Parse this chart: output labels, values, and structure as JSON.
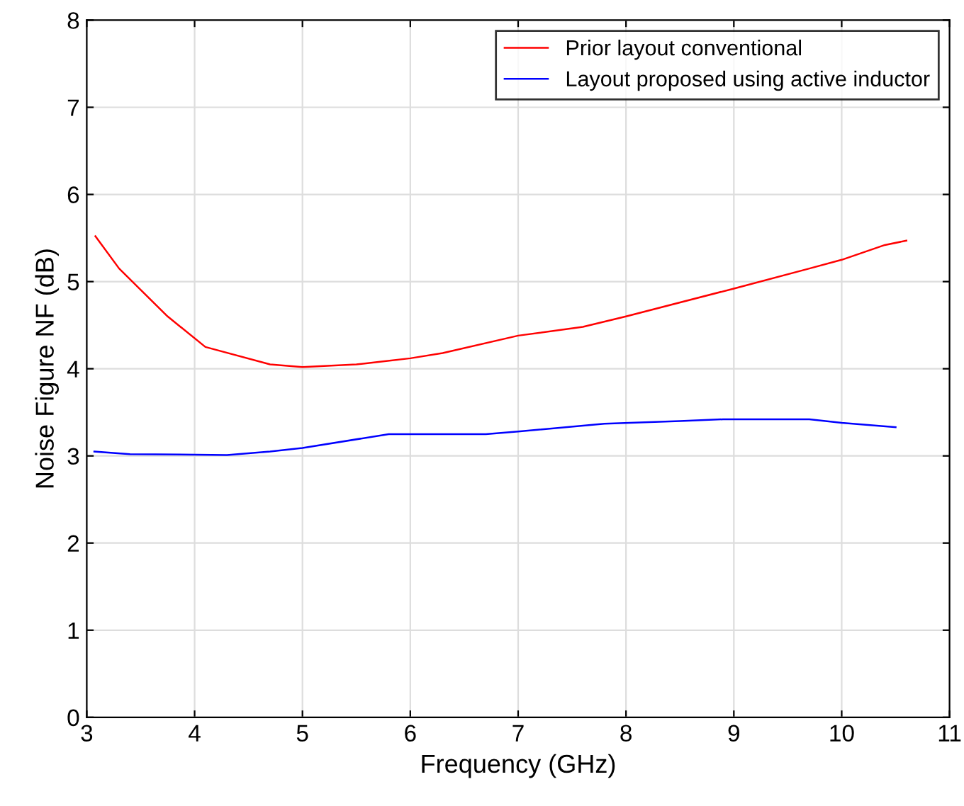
{
  "chart_data": {
    "type": "line",
    "xlabel": "Frequency (GHz)",
    "ylabel": "Noise Figure NF (dB)",
    "xlim": [
      3,
      11
    ],
    "ylim": [
      0,
      8
    ],
    "xticks": [
      3,
      4,
      5,
      6,
      7,
      8,
      9,
      10,
      11
    ],
    "yticks": [
      0,
      1,
      2,
      3,
      4,
      5,
      6,
      7,
      8
    ],
    "grid": true,
    "legend": "top right",
    "series": [
      {
        "name": "Prior layout conventional",
        "color": "#ff0000",
        "x": [
          3.08,
          3.3,
          3.75,
          4.1,
          4.7,
          5.0,
          5.5,
          6.0,
          6.3,
          7.0,
          7.6,
          8.0,
          9.0,
          9.7,
          10.0,
          10.4,
          10.6
        ],
        "values": [
          5.52,
          5.15,
          4.6,
          4.25,
          4.05,
          4.02,
          4.05,
          4.12,
          4.18,
          4.38,
          4.48,
          4.6,
          4.92,
          5.15,
          5.25,
          5.42,
          5.47
        ]
      },
      {
        "name": "Layout proposed using active inductor",
        "color": "#0000ff",
        "x": [
          3.07,
          3.4,
          4.3,
          4.7,
          5.0,
          5.8,
          6.7,
          7.0,
          7.8,
          8.5,
          8.9,
          9.7,
          10.0,
          10.5
        ],
        "values": [
          3.05,
          3.02,
          3.01,
          3.05,
          3.09,
          3.25,
          3.25,
          3.28,
          3.37,
          3.4,
          3.42,
          3.42,
          3.38,
          3.33
        ]
      }
    ]
  }
}
